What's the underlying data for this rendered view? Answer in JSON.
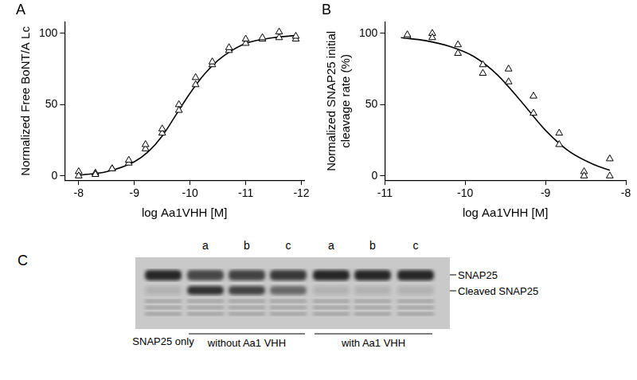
{
  "chart_data": [
    {
      "type": "scatter",
      "title": "A",
      "x_label": "log Aa1VHH [M]",
      "y_label": "Normalized Free BoNT/A Lc",
      "xlim": [
        -7.75,
        -12.05
      ],
      "xticks": [
        -8,
        -9,
        -10,
        -11,
        -12
      ],
      "ylim": [
        -3,
        108
      ],
      "yticks": [
        0,
        50,
        100
      ],
      "grid": false,
      "series": [
        {
          "type": "scatter",
          "marker": "triangle",
          "color": "#000000",
          "x": [
            -8,
            -8,
            -8.3,
            -8.3,
            -8.6,
            -8.6,
            -8.9,
            -8.9,
            -9.2,
            -9.2,
            -9.5,
            -9.5,
            -9.8,
            -9.8,
            -10.1,
            -10.1,
            -10.4,
            -10.4,
            -10.7,
            -10.7,
            -11.0,
            -11.0,
            -11.3,
            -11.3,
            -11.6,
            -11.6,
            -11.9,
            -11.9
          ],
          "values": [
            3,
            0,
            2,
            1,
            5,
            5,
            9,
            11,
            19,
            22,
            30,
            33,
            46,
            50,
            64,
            69,
            78,
            80,
            88,
            90,
            93,
            96,
            96,
            97,
            101,
            97,
            96,
            98
          ]
        },
        {
          "type": "line",
          "line_style": "solid",
          "color": "#000000",
          "x": [
            -8,
            -8.5,
            -9,
            -9.25,
            -9.5,
            -9.75,
            -10,
            -10.25,
            -10.5,
            -10.75,
            -11,
            -11.5,
            -11.9
          ],
          "values": [
            0.5,
            3,
            10,
            17,
            28,
            43,
            58,
            71,
            81,
            88,
            93,
            97,
            98.5
          ]
        }
      ]
    },
    {
      "type": "scatter",
      "title": "B",
      "x_label": "log Aa1VHH [M]",
      "y_label": [
        "Normalized SNAP25 initial",
        "cleavage rate (%)"
      ],
      "xlim": [
        -11,
        -8
      ],
      "xticks": [
        -11,
        -10,
        -9,
        -8
      ],
      "ylim": [
        -3,
        108
      ],
      "yticks": [
        0,
        50,
        100
      ],
      "grid": false,
      "series": [
        {
          "type": "scatter",
          "marker": "triangle",
          "color": "#000000",
          "x": [
            -10.72,
            -10.72,
            -10.41,
            -10.41,
            -10.09,
            -10.09,
            -9.78,
            -9.78,
            -9.46,
            -9.46,
            -9.15,
            -9.15,
            -8.83,
            -8.83,
            -8.52,
            -8.52,
            -8.2,
            -8.2
          ],
          "values": [
            98,
            99,
            100,
            97,
            92,
            86,
            78,
            72,
            75,
            66,
            56,
            44,
            30,
            22,
            3,
            0,
            12,
            0
          ]
        },
        {
          "type": "line",
          "line_style": "solid",
          "color": "#000000",
          "x": [
            -10.8,
            -10.5,
            -10.2,
            -9.9,
            -9.6,
            -9.3,
            -9.0,
            -8.7,
            -8.4,
            -8.2
          ],
          "values": [
            97,
            95,
            91,
            84,
            71,
            52,
            32,
            17,
            8,
            4
          ]
        }
      ]
    }
  ],
  "gel": {
    "label": "C",
    "lane_labels": [
      "a",
      "b",
      "c",
      "a",
      "b",
      "c"
    ],
    "group_labels": [
      "SNAP25 only",
      "without Aa1 VHH",
      "with Aa1 VHH"
    ],
    "band_labels": [
      "SNAP25",
      "Cleaved SNAP25"
    ]
  }
}
